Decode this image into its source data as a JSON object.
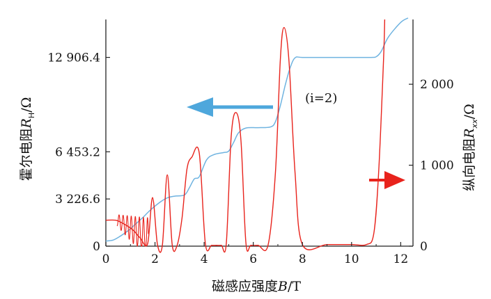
{
  "chart_data": {
    "type": "line",
    "xlabel": {
      "main": "磁感应强度",
      "var": "B",
      "unit": "/T"
    },
    "ylabel_left": {
      "main": "霍尔电阻",
      "var": "R",
      "sub": "H",
      "unit": "/Ω"
    },
    "ylabel_right": {
      "main": "纵向电阻",
      "var": "R",
      "sub": "xx",
      "unit": "/Ω"
    },
    "annotation": "(i=2)",
    "xlim": [
      0,
      12.5
    ],
    "x_ticks": [
      0,
      2,
      4,
      6,
      8,
      10,
      12
    ],
    "x_tick_labels": [
      "0",
      "2",
      "4",
      "6",
      "8",
      "10",
      "12"
    ],
    "ylim_left": [
      0,
      15500
    ],
    "y_ticks_left": [
      0,
      3226.6,
      6453.2,
      12906.4
    ],
    "y_tick_labels_left": [
      "0",
      "3 226.6",
      "6 453.2",
      "12 906.4"
    ],
    "ylim_right": [
      0,
      2800
    ],
    "y_ticks_right": [
      0,
      1000,
      2000
    ],
    "y_tick_labels_right": [
      "0",
      "1 000",
      "2 000"
    ],
    "colors": {
      "hall": "#6fb3e0",
      "rxx": "#e8231c",
      "left_arrow": "#4ea7dc",
      "right_arrow": "#e8231c",
      "axis": "#222222"
    },
    "series": [
      {
        "axis": "left",
        "color": "#6fb3e0",
        "x": [
          0,
          0.3,
          0.6,
          0.9,
          1.2,
          1.5,
          1.8,
          2.2,
          2.5,
          2.8,
          3.2,
          3.4,
          3.6,
          3.8,
          4.1,
          4.4,
          4.8,
          5.0,
          5.2,
          5.4,
          5.7,
          6.2,
          6.7,
          6.9,
          7.1,
          7.3,
          7.5,
          7.7,
          8.0,
          9.0,
          10.0,
          10.8,
          11.0,
          11.2,
          11.5,
          12.0,
          12.3
        ],
        "y": [
          350,
          420,
          700,
          1050,
          1500,
          1950,
          2450,
          3000,
          3300,
          3420,
          3500,
          4000,
          4600,
          4750,
          5900,
          6260,
          6400,
          6500,
          7100,
          7750,
          8080,
          8100,
          8150,
          8500,
          9600,
          11000,
          12200,
          12880,
          12906,
          12906,
          12906,
          12906,
          12950,
          13300,
          14300,
          15300,
          15600
        ]
      },
      {
        "axis": "right",
        "color": "#e8231c",
        "x": [
          0,
          0.4,
          0.7,
          1.1,
          1.4,
          1.7,
          1.9,
          2.1,
          2.3,
          2.5,
          2.7,
          2.9,
          3.1,
          3.3,
          3.5,
          3.8,
          4.05,
          4.3,
          4.5,
          4.7,
          4.9,
          5.1,
          5.3,
          5.5,
          5.7,
          5.9,
          6.2,
          6.6,
          6.9,
          7.1,
          7.25,
          7.45,
          7.7,
          8.0,
          9.0,
          10.0,
          10.6,
          10.9,
          11.1,
          11.3,
          11.35
        ],
        "y": [
          320,
          320,
          280,
          200,
          100,
          30,
          600,
          20,
          10,
          880,
          15,
          10,
          350,
          950,
          1100,
          1150,
          30,
          10,
          10,
          10,
          30,
          1350,
          1650,
          1300,
          40,
          10,
          10,
          10,
          900,
          2300,
          2700,
          2300,
          900,
          20,
          20,
          20,
          20,
          150,
          900,
          2300,
          2800
        ]
      }
    ]
  }
}
